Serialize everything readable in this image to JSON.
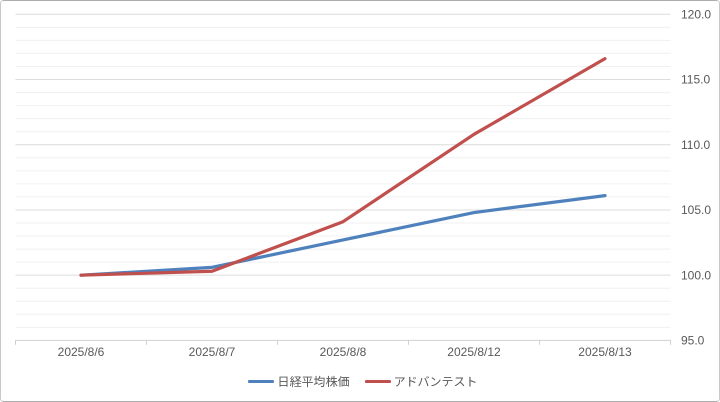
{
  "chart_data": {
    "type": "line",
    "title": "",
    "xlabel": "",
    "ylabel": "",
    "categories": [
      "2025/8/6",
      "2025/8/7",
      "2025/8/8",
      "2025/8/12",
      "2025/8/13"
    ],
    "series": [
      {
        "name": "日経平均株価",
        "color": "#4F81BD",
        "values": [
          100.0,
          100.6,
          102.7,
          104.8,
          106.1
        ]
      },
      {
        "name": "アドバンテスト",
        "color": "#C0504D",
        "values": [
          100.0,
          100.3,
          104.1,
          110.8,
          116.6
        ]
      }
    ],
    "ylim": [
      95,
      120
    ],
    "y_major_step": 5,
    "y_minor_step": 1,
    "y_tick_labels": [
      "120.0",
      "115.0",
      "110.0",
      "105.0",
      "100.0",
      "95.0"
    ],
    "y_axis_side": "right",
    "grid": "horizontal major and minor gridlines",
    "legend_position": "bottom-center",
    "line_width": 3.2
  },
  "style": {
    "background": "#FFFFFF",
    "grid_major_color": "#DCDCDC",
    "grid_minor_color": "#F0F0F0",
    "axis_line_color": "#D0D0D0",
    "label_color": "#595959",
    "border_top_bottom_color": "#ACACAC",
    "border_side_color": "#C9C9C9",
    "label_font_size": 12
  }
}
